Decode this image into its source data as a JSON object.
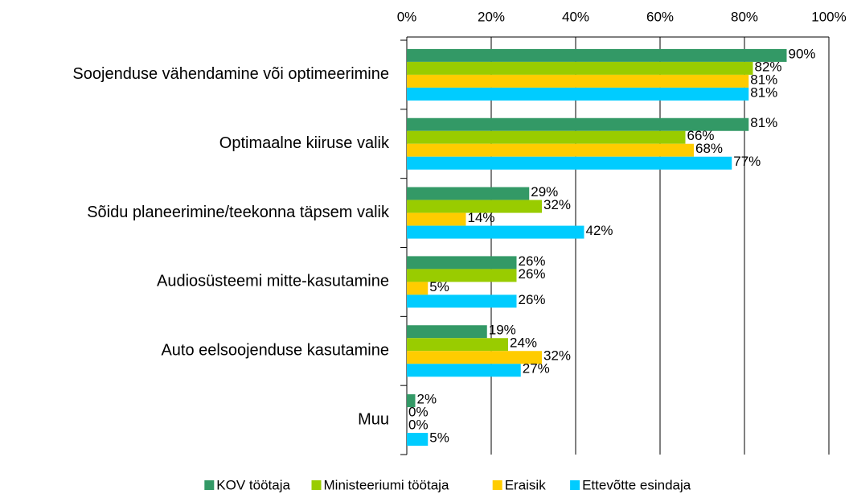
{
  "chart_data": {
    "type": "barh",
    "categories": [
      "Soojenduse vähendamine või optimeerimine",
      "Optimaalne kiiruse valik",
      "Sõidu planeerimine/teekonna täpsem valik",
      "Audiosüsteemi mitte-kasutamine",
      "Auto eelsoojenduse kasutamine",
      "Muu"
    ],
    "series": [
      {
        "name": "KOV töötaja",
        "color": "#339966",
        "values": [
          90,
          81,
          29,
          26,
          19,
          2
        ],
        "value_labels": [
          "90%",
          "81%",
          "29%",
          "26%",
          "19%",
          "2%"
        ]
      },
      {
        "name": "Ministeeriumi töötaja",
        "color": "#99cc00",
        "values": [
          82,
          66,
          32,
          26,
          24,
          0
        ],
        "value_labels": [
          "82%",
          "66%",
          "32%",
          "26%",
          "24%",
          "0%"
        ]
      },
      {
        "name": "Eraisik",
        "color": "#ffcc00",
        "values": [
          81,
          68,
          14,
          5,
          32,
          0
        ],
        "value_labels": [
          "81%",
          "68%",
          "14%",
          "5%",
          "32%",
          "0%"
        ]
      },
      {
        "name": "Ettevõtte esindaja",
        "color": "#00ccff",
        "values": [
          81,
          77,
          42,
          26,
          27,
          5
        ],
        "value_labels": [
          "81%",
          "77%",
          "42%",
          "26%",
          "27%",
          "5%"
        ]
      }
    ],
    "xlim": [
      0,
      100
    ],
    "xticks": [
      {
        "value": 0,
        "label": "0%"
      },
      {
        "value": 20,
        "label": "20%"
      },
      {
        "value": 40,
        "label": "40%"
      },
      {
        "value": 60,
        "label": "60%"
      },
      {
        "value": 80,
        "label": "80%"
      },
      {
        "value": 100,
        "label": "100%"
      }
    ],
    "grid": true,
    "legend": "bottom"
  }
}
